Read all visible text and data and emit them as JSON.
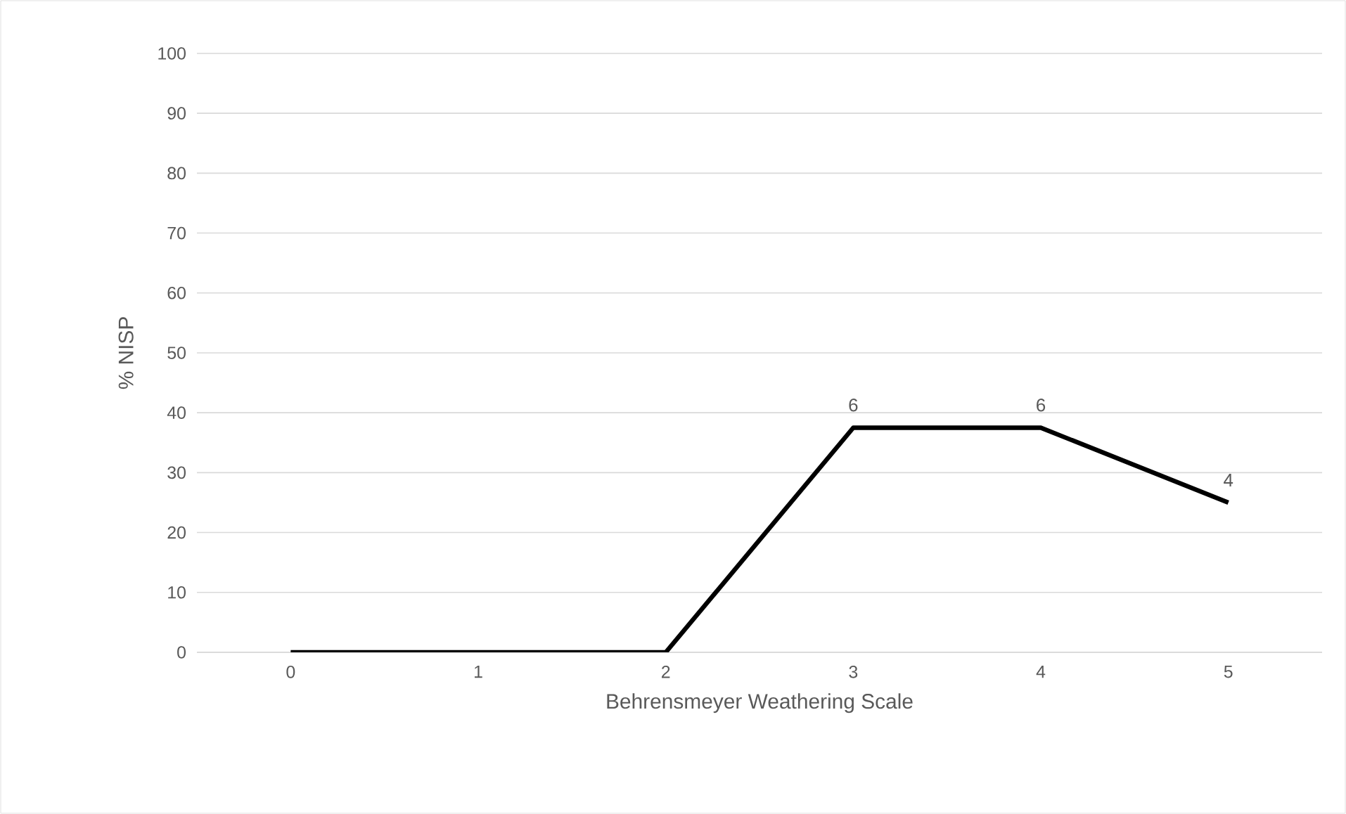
{
  "chart_data": {
    "type": "line",
    "xlabel": "Behrensmeyer Weathering Scale",
    "ylabel": "% NISP",
    "categories": [
      "0",
      "1",
      "2",
      "3",
      "4",
      "5"
    ],
    "values": [
      0,
      0,
      0,
      37.5,
      37.5,
      25
    ],
    "annotations": [
      {
        "text": "6",
        "x": "3",
        "y": 37.5
      },
      {
        "text": "6",
        "x": "4",
        "y": 37.5
      },
      {
        "text": "4",
        "x": "5",
        "y": 25
      }
    ],
    "color": "#000000",
    "ylim": [
      0,
      100
    ],
    "yticks": [
      0,
      10,
      20,
      30,
      40,
      50,
      60,
      70,
      80,
      90,
      100
    ],
    "grid": "y"
  }
}
